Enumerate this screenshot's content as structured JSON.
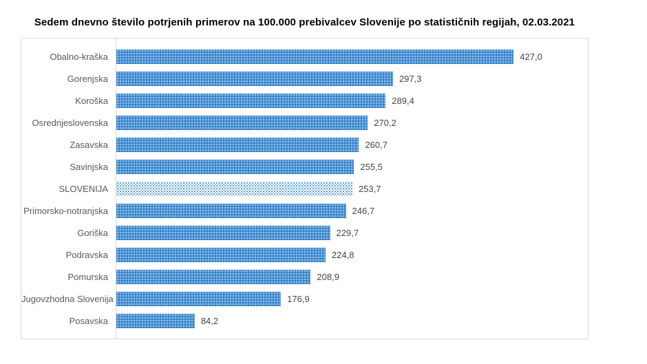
{
  "title": "Sedem dnevno število potrjenih primerov na 100.000 prebivalcev Slovenije po statističnih regijah, 02.03.2021",
  "colors": {
    "bar_fill": "#4a94d8",
    "highlight_bar_dot": "#4e9bd4",
    "category_label_text": "#595959",
    "value_label_text": "#444444",
    "frame_border": "#d9d9d9",
    "title_text": "#000000"
  },
  "chart_data": {
    "type": "bar",
    "orientation": "horizontal",
    "title": "Sedem dnevno število potrjenih primerov na 100.000 prebivalcev Slovenije po statističnih regijah, 02.03.2021",
    "categories": [
      "Obalno-kraška",
      "Gorenjska",
      "Koroška",
      "Osrednjeslovenska",
      "Zasavska",
      "Savinjska",
      "SLOVENIJA",
      "Primorsko-notranjska",
      "Goriška",
      "Podravska",
      "Pomurska",
      "Jugovzhodna Slovenija",
      "Posavska"
    ],
    "values": [
      427.0,
      297.3,
      289.4,
      270.2,
      260.7,
      255.5,
      253.7,
      246.7,
      229.7,
      224.8,
      208.9,
      176.9,
      84.2
    ],
    "value_labels": [
      "427,0",
      "297,3",
      "289,4",
      "270,2",
      "260,7",
      "255,5",
      "253,7",
      "246,7",
      "229,7",
      "224,8",
      "208,9",
      "176,9",
      "84,2"
    ],
    "highlight_category": "SLOVENIJA",
    "highlight_index": 6,
    "xlabel": "",
    "ylabel": "",
    "xlim": [
      0,
      500
    ],
    "grid": false,
    "legend": false,
    "data_labels": true
  }
}
